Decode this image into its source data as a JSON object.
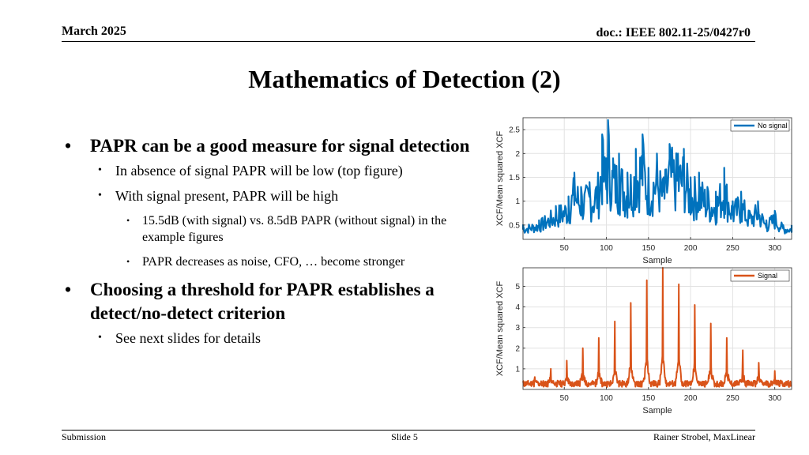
{
  "header": {
    "date": "March 2025",
    "doc": "doc.: IEEE 802.11-25/0427r0"
  },
  "title": "Mathematics of Detection (2)",
  "bullets": [
    {
      "text": "PAPR can be a good measure for signal detection",
      "children": [
        {
          "text": "In absence of signal PAPR will be low (top figure)"
        },
        {
          "text": "With signal present, PAPR will be high",
          "children": [
            {
              "text": "15.5dB (with signal) vs. 8.5dB PAPR (without signal) in the example figures"
            },
            {
              "text": "PAPR decreases as noise, CFO, … become stronger"
            }
          ]
        }
      ]
    },
    {
      "text": "Choosing a threshold for PAPR establishes a detect/no-detect criterion",
      "children": [
        {
          "text": "See next slides for details"
        }
      ]
    }
  ],
  "chart_data": [
    {
      "type": "line",
      "xlabel": "Sample",
      "ylabel": "XCF/Mean squared XCF",
      "xlim": [
        1,
        320
      ],
      "ylim": [
        0.2,
        2.75
      ],
      "xticks": [
        50,
        100,
        150,
        200,
        250,
        300
      ],
      "yticks": [
        0.5,
        1,
        1.5,
        2,
        2.5
      ],
      "ytick_labels": [
        "0.5",
        "1",
        "1.5",
        "2",
        "2.5"
      ],
      "grid": true,
      "legend_position": "top-right",
      "series": [
        {
          "name": "No signal",
          "color": "#0072BD",
          "x": [
            1,
            20,
            40,
            55,
            62,
            70,
            80,
            90,
            95,
            100,
            102,
            108,
            115,
            125,
            135,
            143,
            150,
            160,
            168,
            175,
            185,
            192,
            200,
            210,
            220,
            230,
            240,
            250,
            260,
            270,
            280,
            290,
            300,
            310,
            320
          ],
          "y": [
            0.5,
            0.6,
            0.9,
            1.1,
            1.6,
            1.3,
            1.4,
            1.6,
            2.4,
            1.9,
            2.7,
            1.9,
            2.0,
            1.6,
            2.1,
            2.4,
            1.7,
            2.0,
            1.5,
            2.2,
            2.0,
            2.1,
            1.5,
            1.6,
            1.3,
            1.2,
            1.7,
            1.0,
            1.2,
            0.8,
            1.0,
            0.6,
            0.8,
            0.5,
            0.5
          ]
        }
      ]
    },
    {
      "type": "line",
      "xlabel": "Sample",
      "ylabel": "XCF/Mean squared XCF",
      "xlim": [
        1,
        320
      ],
      "ylim": [
        0,
        5.9
      ],
      "xticks": [
        50,
        100,
        150,
        200,
        250,
        300
      ],
      "yticks": [
        1,
        2,
        3,
        4,
        5
      ],
      "ytick_labels": [
        "1",
        "2",
        "3",
        "4",
        "5"
      ],
      "grid": true,
      "legend_position": "top-right",
      "series": [
        {
          "name": "Signal",
          "color": "#D95319",
          "peaks_x": [
            15,
            34,
            53,
            72,
            91,
            110,
            129,
            148,
            167,
            186,
            205,
            224,
            243,
            262,
            281,
            300
          ],
          "peaks_y": [
            0.6,
            1.0,
            1.4,
            2.0,
            2.5,
            3.3,
            4.2,
            5.3,
            5.9,
            5.1,
            4.1,
            3.2,
            2.5,
            1.9,
            1.3,
            0.9
          ],
          "baseline": 0.4
        }
      ]
    }
  ],
  "footer": {
    "left": "Submission",
    "center": "Slide 5",
    "right": "Rainer Strobel, MaxLinear"
  }
}
